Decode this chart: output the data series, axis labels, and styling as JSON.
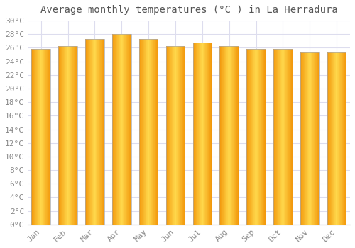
{
  "title": "Average monthly temperatures (°C ) in La Herradura",
  "months": [
    "Jan",
    "Feb",
    "Mar",
    "Apr",
    "May",
    "Jun",
    "Jul",
    "Aug",
    "Sep",
    "Oct",
    "Nov",
    "Dec"
  ],
  "values": [
    25.8,
    26.3,
    27.3,
    28.0,
    27.3,
    26.3,
    26.8,
    26.3,
    25.8,
    25.8,
    25.3,
    25.3
  ],
  "bar_color_center": "#FFD050",
  "bar_color_edge": "#F0A000",
  "bar_border_color": "#AAAAAA",
  "background_color": "#FFFFFF",
  "grid_color": "#DDDDEE",
  "ylim": [
    0,
    30
  ],
  "ytick_step": 2,
  "title_fontsize": 10,
  "tick_fontsize": 8
}
